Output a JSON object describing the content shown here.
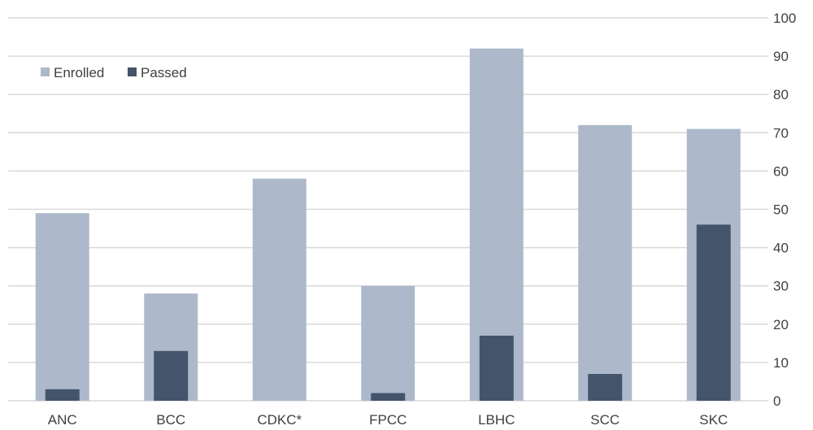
{
  "chart_data": {
    "type": "bar",
    "categories": [
      "ANC",
      "BCC",
      "CDKC*",
      "FPCC",
      "LBHC",
      "SCC",
      "SKC"
    ],
    "series": [
      {
        "name": "Enrolled",
        "values": [
          49,
          28,
          58,
          30,
          92,
          72,
          71
        ],
        "color": "#adb9ca"
      },
      {
        "name": "Passed",
        "values": [
          3,
          13,
          0,
          2,
          17,
          7,
          46
        ],
        "color": "#44546a"
      }
    ],
    "ylim": [
      0,
      100
    ],
    "yticks": [
      0,
      10,
      20,
      30,
      40,
      50,
      60,
      70,
      80,
      90,
      100
    ],
    "ytick_labels": [
      "0",
      "10",
      "20",
      "30",
      "40",
      "50",
      "60",
      "70",
      "80",
      "90",
      "100"
    ],
    "y_axis_side": "right",
    "grid": true,
    "gridline_color": "#d9d9d9",
    "legend_position": "top-left",
    "overlap": "passed bar drawn inside enrolled bar"
  }
}
